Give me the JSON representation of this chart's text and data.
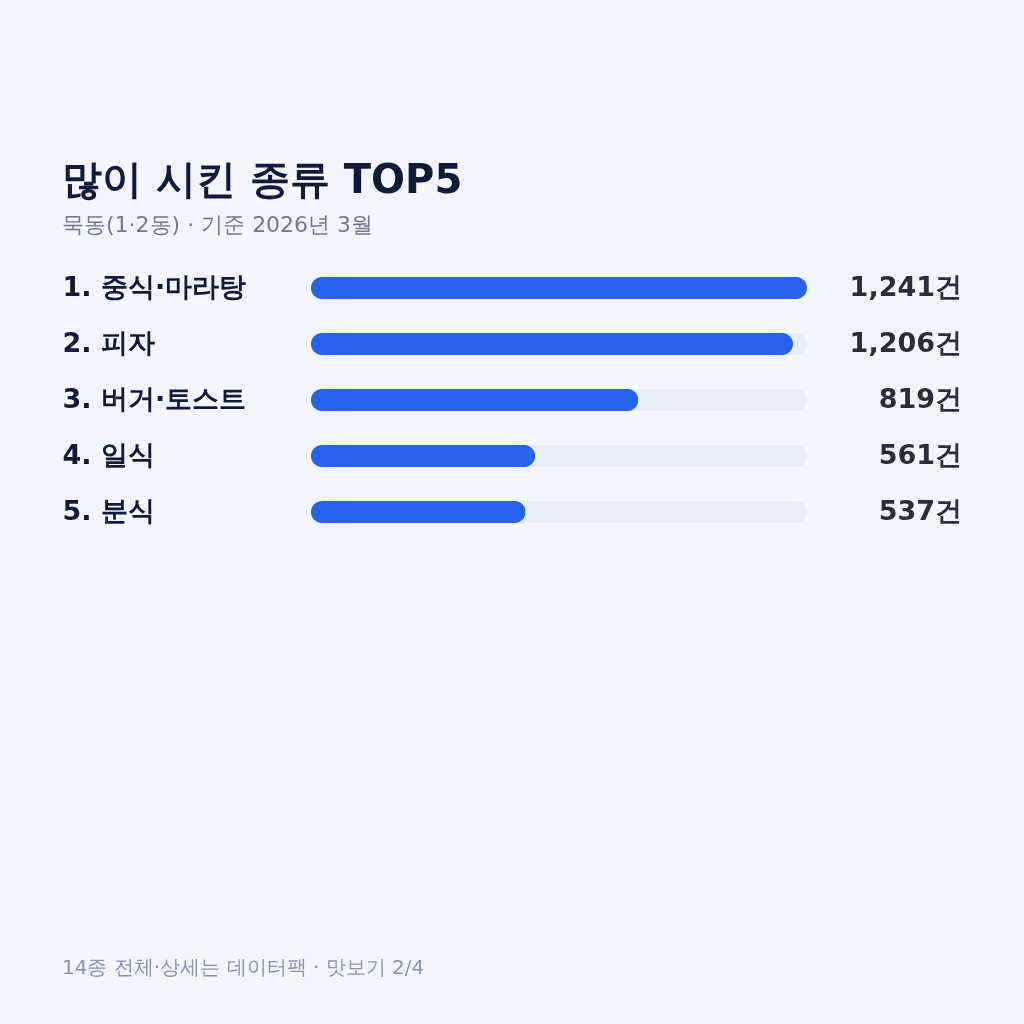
{
  "chart_data": {
    "type": "bar",
    "orientation": "horizontal",
    "title": "많이 시킨 종류 TOP5",
    "subtitle": "묵동(1·2동) · 기준 2026년 3월",
    "categories": [
      "1. 중식·마라탕",
      "2. 피자",
      "3. 버거·토스트",
      "4. 일식",
      "5. 분식"
    ],
    "values": [
      1241,
      1206,
      819,
      561,
      537
    ],
    "color": "#2563eb",
    "value_labels": [
      "1,241건",
      "1,206건",
      "819건",
      "561건",
      "537건"
    ],
    "xlim": [
      0,
      1241
    ],
    "tick_labels": "y",
    "annotations": [
      "14종 전체·상세는 데이터팩 · 맛보기 2/4"
    ]
  }
}
